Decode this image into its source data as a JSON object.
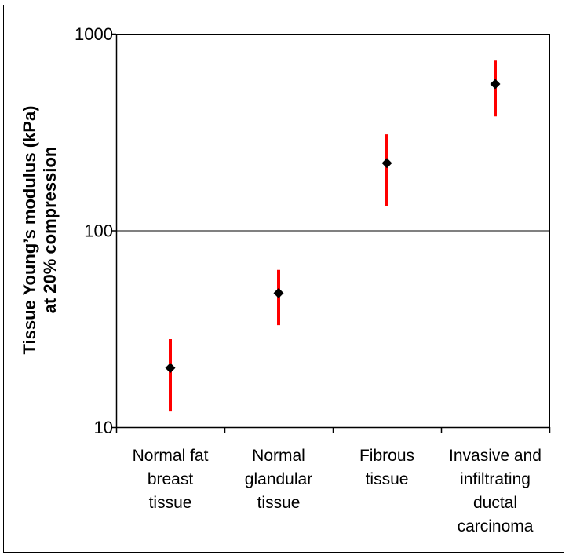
{
  "chart_data": {
    "type": "scatter",
    "ylabel_lines": [
      "Tissue Young’s modulus (kPa)",
      "at 20% compression"
    ],
    "y_scale": "log",
    "ylim": [
      10,
      1000
    ],
    "y_ticks": [
      {
        "value": 10,
        "label": "10"
      },
      {
        "value": 100,
        "label": "100"
      },
      {
        "value": 1000,
        "label": "1000"
      }
    ],
    "grid": {
      "horizontal": true,
      "vertical": false
    },
    "categories": [
      {
        "lines": [
          "Normal fat",
          "breast",
          "tissue"
        ]
      },
      {
        "lines": [
          "Normal",
          "glandular",
          "tissue"
        ]
      },
      {
        "lines": [
          "Fibrous",
          "tissue"
        ]
      },
      {
        "lines": [
          "Invasive and",
          "infiltrating",
          "ductal",
          "carcinoma"
        ]
      }
    ],
    "points": [
      {
        "value": 20,
        "low": 12,
        "high": 28
      },
      {
        "value": 48,
        "low": 33,
        "high": 63
      },
      {
        "value": 220,
        "low": 133,
        "high": 308
      },
      {
        "value": 555,
        "low": 380,
        "high": 730
      }
    ],
    "colors": {
      "marker": "#000000",
      "error_bar": "#ff0000",
      "axis": "#000000",
      "gridline": "#000000",
      "frame": "#000000"
    }
  }
}
